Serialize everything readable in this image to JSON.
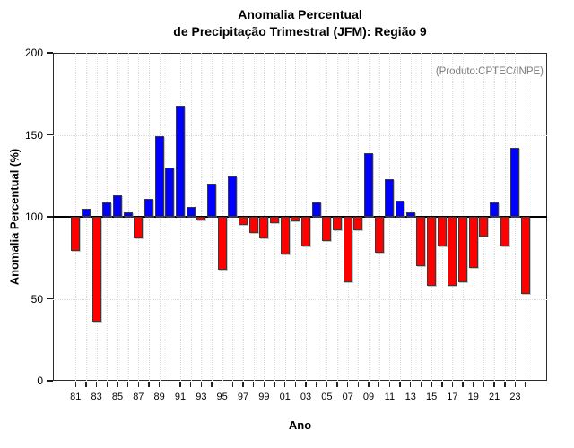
{
  "title": {
    "line1": "Anomalia Percentual",
    "line2": "de Precipitação Trimestral (JFM): Região 9"
  },
  "note": "(Produto:CPTEC/INPE)",
  "chart_data": {
    "type": "bar",
    "title": "Anomalia Percentual de Precipitação Trimestral (JFM): Região 9",
    "xlabel": "Ano",
    "ylabel": "Anomalia Percentual (%)",
    "annotation": "(Produto:CPTEC/INPE)",
    "ylim": [
      0,
      200
    ],
    "yticks": [
      0,
      50,
      100,
      150,
      200
    ],
    "grid_y": [
      50,
      150
    ],
    "baseline": 100,
    "grid": "dotted light-gray vertical line at every year; dotted horizontal at 50 and 150; solid black line at 100",
    "legend_position": "none",
    "bar_colors": {
      "above_baseline": "#0000ff",
      "below_baseline": "#ff0000"
    },
    "xtick_labels": [
      "81",
      "83",
      "85",
      "87",
      "89",
      "91",
      "93",
      "95",
      "97",
      "99",
      "01",
      "03",
      "05",
      "07",
      "09",
      "11",
      "13",
      "15",
      "17",
      "19",
      "21",
      "23"
    ],
    "years": [
      "81",
      "82",
      "83",
      "84",
      "85",
      "86",
      "87",
      "88",
      "89",
      "90",
      "91",
      "92",
      "93",
      "94",
      "95",
      "96",
      "97",
      "98",
      "99",
      "00",
      "01",
      "02",
      "03",
      "04",
      "05",
      "06",
      "07",
      "08",
      "09",
      "10",
      "11",
      "12",
      "13",
      "14",
      "15",
      "16",
      "17",
      "18",
      "19",
      "20",
      "21",
      "22",
      "23",
      "24"
    ],
    "values": [
      79,
      105,
      36,
      109,
      113,
      103,
      87,
      111,
      149,
      130,
      168,
      106,
      98,
      120,
      68,
      125,
      95,
      90,
      87,
      96,
      77,
      97,
      82,
      109,
      85,
      92,
      60,
      92,
      139,
      78,
      123,
      110,
      103,
      70,
      58,
      82,
      58,
      60,
      69,
      88,
      109,
      82,
      142,
      53
    ]
  }
}
